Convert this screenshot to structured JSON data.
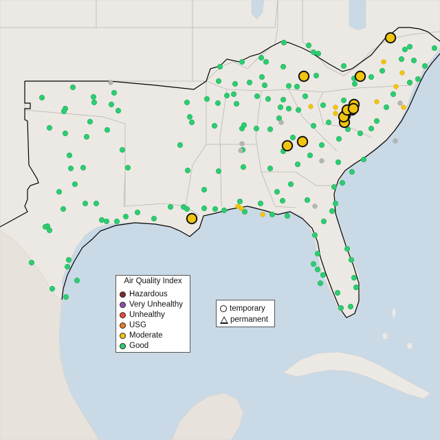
{
  "map": {
    "region": "Southeastern United States",
    "colors": {
      "water": "#c9d9e6",
      "land": "#ece9e4",
      "mexico_land": "#e7e2dc",
      "state_border": "#b9b5b0",
      "region_outline": "#000000"
    }
  },
  "aqi_legend": {
    "title": "Air Quality Index",
    "categories": [
      {
        "label": "Hazardous",
        "color": "#7e2d2d"
      },
      {
        "label": "Very Unhealthy",
        "color": "#8f52a8"
      },
      {
        "label": "Unhealthy",
        "color": "#e74c3c"
      },
      {
        "label": "USG",
        "color": "#e67e22"
      },
      {
        "label": "Moderate",
        "color": "#f1c40f"
      },
      {
        "label": "Good",
        "color": "#2ecc71"
      }
    ]
  },
  "shape_legend": {
    "items": [
      {
        "label": "temporary",
        "icon": "circle-outline-icon"
      },
      {
        "label": "permanent",
        "icon": "triangle-outline-icon"
      }
    ]
  },
  "monitor_counts": {
    "moderate_large": 13,
    "moderate_small": 12,
    "no_data_gray": 8
  }
}
